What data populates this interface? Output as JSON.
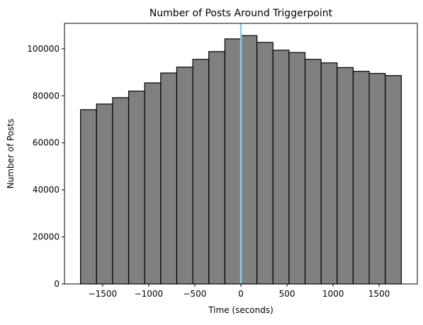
{
  "chart_data": {
    "type": "histogram",
    "title": "Number of Posts Around Triggerpoint",
    "x_label": "Time (seconds)",
    "y_label": "Number of Posts",
    "bins": [
      -1740,
      -1566,
      -1392,
      -1218,
      -1044,
      -870,
      -696,
      -522,
      -348,
      -174,
      0,
      174,
      348,
      522,
      696,
      870,
      1044,
      1218,
      1392,
      1566,
      1740
    ],
    "values": [
      74100,
      76500,
      79200,
      82000,
      85500,
      89700,
      92200,
      95500,
      98800,
      104200,
      105600,
      102700,
      99400,
      98400,
      95500,
      94000,
      92000,
      90400,
      89500,
      88600
    ],
    "color": "#808080",
    "edgecolor": "#000000",
    "vline": 0,
    "vline_color": "#87ceeb",
    "xlim": [
      -1914,
      1914
    ],
    "ylim": [
      0,
      110800
    ],
    "xticks": [
      {
        "value": -1500,
        "label": "−1500"
      },
      {
        "value": -1000,
        "label": "−1000"
      },
      {
        "value": -500,
        "label": "−500"
      },
      0,
      500,
      1000,
      1500
    ],
    "yticks": [
      0,
      20000,
      40000,
      60000,
      80000,
      100000
    ]
  }
}
